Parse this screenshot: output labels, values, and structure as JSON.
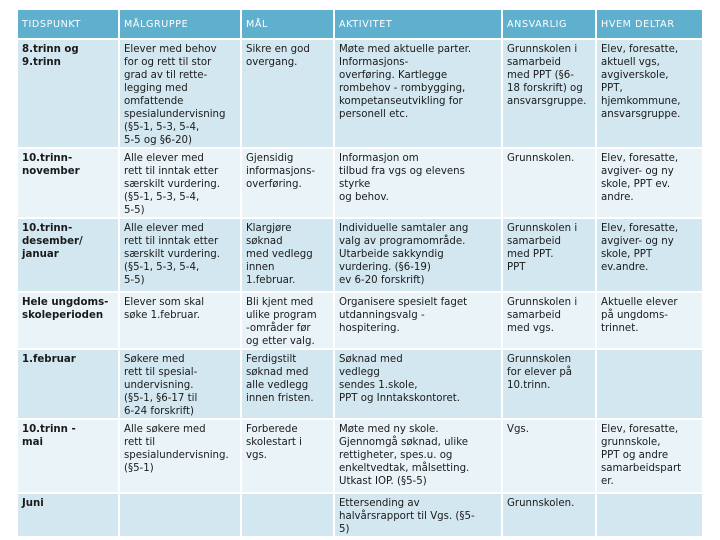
{
  "table": {
    "headers": [
      "TIDSPUNKT",
      "MÅLGRUPPE",
      "MÅL",
      "AKTIVITET",
      "ANSVARLIG",
      "HVEM DELTAR"
    ],
    "rows": [
      [
        "8.trinn og\n9.trinn",
        "Elever med behov\nfor og rett til stor\ngrad av til rette-\nlegging med\nomfattende\nspesialundervisning\n(§5-1, 5-3, 5-4,\n5-5 og §6-20)",
        "Sikre en god\novergang.",
        "Møte med aktuelle parter.\nInformasjons-\noverføring. Kartlegge\nrombehov - rombygging,\nkompetanseutvikling for\npersonell etc.",
        "Grunnskolen i\nsamarbeid\nmed PPT (§6-\n18 forskrift) og\nansvarsgruppe.",
        "Elev, foresatte,\naktuell vgs,\navgiverskole,\nPPT,\nhjemkommune,\nansvarsgruppe."
      ],
      [
        "10.trinn-\nnovember",
        "Alle elever med\nrett til inntak etter\nsærskilt vurdering.\n(§5-1, 5-3, 5-4,\n5-5)",
        "Gjensidig\ninformasjons-\noverføring.",
        "Informasjon om\ntilbud fra vgs og elevens\nstyrke\nog behov.",
        "Grunnskolen.",
        "Elev, foresatte,\navgiver- og ny\nskole, PPT ev.\nandre."
      ],
      [
        "10.trinn-\ndesember/\njanuar",
        "Alle elever med\nrett til inntak etter\nsærskilt vurdering.\n(§5-1, 5-3, 5-4,\n5-5)",
        "Klargjøre\nsøknad\nmed vedlegg\ninnen\n1.februar.",
        "Individuelle samtaler ang\nvalg av programområde.\nUtarbeide sakkyndig\nvurdering. (§6-19)\nev 6-20 forskrift)",
        "Grunnskolen i\nsamarbeid\nmed PPT.\nPPT",
        "Elev, foresatte,\navgiver- og ny\nskole, PPT\nev.andre."
      ],
      [
        "Hele ungdoms-\nskoleperioden",
        "Elever som skal\nsøke 1.februar.",
        "Bli kjent med\nulike program\n-områder før\nog etter valg.",
        "Organisere spesielt faget\nutdanningsvalg -\nhospitering.",
        "Grunnskolen i\nsamarbeid\nmed vgs.",
        "Aktuelle elever\npå ungdoms-\ntrinnet."
      ],
      [
        "1.februar",
        "Søkere med\nrett til spesial-\nundervisning.\n(§5-1, §6-17 til\n6-24 forskrift)",
        "Ferdigstilt\nsøknad med\nalle vedlegg\ninnen fristen.",
        "Søknad med\nvedlegg\nsendes 1.skole,\nPPT og Inntakskontoret.",
        "Grunnskolen\nfor elever på\n10.trinn.",
        ""
      ],
      [
        "10.trinn -\nmai",
        "Alle søkere med\nrett til\nspesialundervisning.\n(§5-1)",
        "Forberede\nskolestart i\nvgs.",
        "Møte med ny skole.\nGjennomgå søknad, ulike\nrettigheter, spes.u. og\nenkeltvedtak, målsetting.\nUtkast IOP. (§5-5)",
        "Vgs.",
        "Elev, foresatte,\ngrunnskole,\nPPT og andre\nsamarbeidspart\ner."
      ],
      [
        "Juni",
        "",
        "",
        "Ettersending av\nhalvårsrapport til Vgs. (§5-\n5)",
        "Grunnskolen.",
        ""
      ]
    ]
  }
}
